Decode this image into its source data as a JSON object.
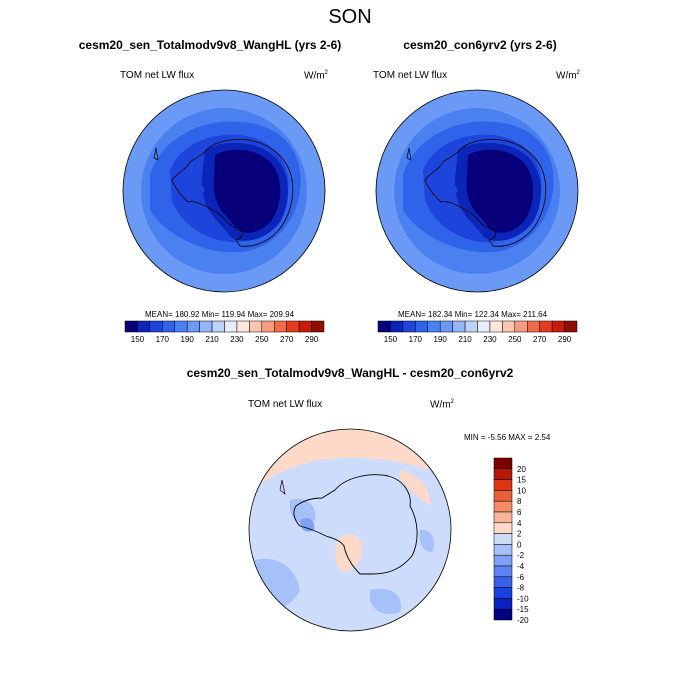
{
  "page": {
    "title": "SON"
  },
  "colors": {
    "abs_scale": [
      "#08007a",
      "#0a25b8",
      "#1d45dc",
      "#2f63ea",
      "#4b80f0",
      "#6a9af5",
      "#93b6f8",
      "#bcd3fb",
      "#e6eefd",
      "#fde6dc",
      "#fbc6ae",
      "#f89c7f",
      "#f06a48",
      "#e23b1d",
      "#c81c0b",
      "#8f0f00"
    ],
    "diff_scale": [
      "#010080",
      "#0b22c2",
      "#1a40dd",
      "#3a60ea",
      "#5d82f2",
      "#7fa0f5",
      "#a6c0f9",
      "#cddcfb",
      "#fcd9c8",
      "#f8b598",
      "#f28b67",
      "#ea5e3a",
      "#dc3414",
      "#b71707",
      "#7d0000"
    ]
  },
  "chart_data": [
    {
      "type": "heatmap",
      "title": "cesm20_sen_Totalmodv9v8_WangHL (yrs 2-6)",
      "variable": "TOM net LW flux",
      "units": "W/m",
      "units_exp": "2",
      "stats": "MEAN= 180.92  Min= 119.94  Max= 209.94",
      "colorbar_ticks": [
        "150",
        "170",
        "190",
        "210",
        "230",
        "250",
        "270",
        "290"
      ]
    },
    {
      "type": "heatmap",
      "title": "cesm20_con6yrv2 (yrs 2-6)",
      "variable": "TOM net LW flux",
      "units": "W/m",
      "units_exp": "2",
      "stats": "MEAN= 182.34  Min= 122.34  Max= 211.64",
      "colorbar_ticks": [
        "150",
        "170",
        "190",
        "210",
        "230",
        "250",
        "270",
        "290"
      ]
    },
    {
      "type": "heatmap",
      "title": "cesm20_sen_Totalmodv9v8_WangHL - cesm20_con6yrv2",
      "variable": "TOM net LW flux",
      "units": "W/m",
      "units_exp": "2",
      "stats": "MIN = -5.56 MAX =   2.54",
      "colorbar_ticks": [
        "20",
        "15",
        "10",
        "8",
        "6",
        "4",
        "2",
        "0",
        "-2",
        "-4",
        "-6",
        "-8",
        "-10",
        "-15",
        "-20"
      ]
    }
  ]
}
